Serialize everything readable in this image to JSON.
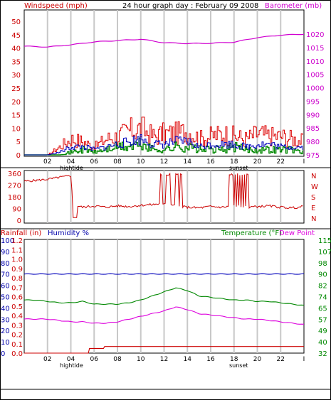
{
  "chart_data": [
    {
      "type": "line",
      "title": "24 hour graph day : February 09 2008",
      "left_axis_label": "Windspeed (mph)",
      "right_axis_label": "Barometer (mb)",
      "y_left_ticks": [
        "0",
        "5",
        "10",
        "15",
        "20",
        "25",
        "30",
        "35",
        "40",
        "45",
        "50"
      ],
      "y_right_ticks": [
        "975",
        "980",
        "985",
        "990",
        "995",
        "1000",
        "1005",
        "1010",
        "1015",
        "1020"
      ],
      "x_tick_labels": [
        "02",
        "04",
        "06",
        "08",
        "10",
        "12",
        "14",
        "16",
        "18",
        "20",
        "22"
      ],
      "x_end_label": "I",
      "annotations": [
        "hightide",
        "sunset"
      ],
      "series": [
        {
          "color": "#d000d0",
          "axis": "right",
          "x": [
            0,
            2,
            4,
            6,
            8,
            10,
            12,
            14,
            16,
            18,
            20,
            22,
            24
          ],
          "values": [
            1015.5,
            1015.2,
            1016.0,
            1017.1,
            1017.6,
            1018.1,
            1016.8,
            1016.5,
            1016.6,
            1017.0,
            1018.7,
            1019.6,
            1020.0
          ]
        },
        {
          "color": "#dd0000",
          "axis": "left",
          "x": [
            0,
            1,
            2,
            3,
            4,
            5,
            6,
            7,
            8,
            9,
            10,
            11,
            12,
            13,
            14,
            15,
            16,
            17,
            18,
            19,
            20,
            21,
            22,
            23,
            24
          ],
          "values": [
            0,
            0,
            0,
            3,
            6,
            5,
            3,
            6,
            7,
            9,
            10,
            7,
            8,
            8,
            9,
            6,
            7,
            8,
            7,
            6,
            8,
            7,
            7,
            6,
            5
          ]
        },
        {
          "color": "#0000bb",
          "axis": "left",
          "x": [
            0,
            1,
            2,
            3,
            4,
            5,
            6,
            7,
            8,
            9,
            10,
            11,
            12,
            13,
            14,
            15,
            16,
            17,
            18,
            19,
            20,
            21,
            22,
            23,
            24
          ],
          "values": [
            0,
            0,
            0,
            1,
            3,
            3,
            2,
            3,
            4,
            5,
            6,
            4,
            4,
            5,
            5,
            3,
            4,
            4,
            4,
            3,
            4,
            4,
            3,
            3,
            3
          ]
        },
        {
          "color": "#008800",
          "axis": "left",
          "x": [
            0,
            1,
            2,
            3,
            4,
            5,
            6,
            7,
            8,
            9,
            10,
            11,
            12,
            13,
            14,
            15,
            16,
            17,
            18,
            19,
            20,
            21,
            22,
            23,
            24
          ],
          "values": [
            0,
            0,
            0,
            0,
            1,
            2,
            1,
            2,
            3,
            3,
            4,
            2,
            2,
            3,
            3,
            2,
            2,
            2,
            3,
            2,
            2,
            2,
            2,
            2,
            1
          ]
        }
      ]
    },
    {
      "type": "line",
      "left_ticks": [
        "360",
        "270",
        "180",
        "90",
        "0"
      ],
      "right_labels": [
        "N",
        "W",
        "S",
        "E",
        "N"
      ],
      "series": [
        {
          "color": "#cc0000",
          "x": [
            0,
            0.2,
            1.5,
            2.5,
            3.0,
            4.0,
            4.3,
            4.6,
            5,
            6,
            7,
            8,
            9,
            10,
            11,
            12,
            13,
            14,
            15,
            16,
            17,
            18,
            19,
            20,
            21,
            22,
            23,
            24
          ],
          "values": [
            300,
            300,
            310,
            320,
            330,
            340,
            20,
            110,
            100,
            110,
            100,
            110,
            105,
            115,
            120,
            130,
            110,
            100,
            95,
            105,
            100,
            110,
            100,
            105,
            110,
            100,
            95,
            105
          ]
        }
      ]
    },
    {
      "type": "line",
      "left_axis_label": "Rainfall (in)",
      "left_axis_label2": "Humidity %",
      "right_axis_label": "Temperature (°F)",
      "right_axis_label2": "Dew Point",
      "rain_ticks": [
        "0.0",
        "0.1",
        "0.2",
        "0.3",
        "0.4",
        "0.5",
        "0.6",
        "0.7",
        "0.8",
        "0.9",
        "1.0",
        "1.1",
        "1.2"
      ],
      "humidity_ticks": [
        "0",
        "10",
        "20",
        "30",
        "40",
        "50",
        "60",
        "70",
        "80",
        "90",
        "100"
      ],
      "temp_ticks": [
        "32",
        "40",
        "49",
        "57",
        "65",
        "74",
        "82",
        "90",
        "98",
        "107",
        "115"
      ],
      "x_tick_labels": [
        "02",
        "04",
        "06",
        "08",
        "10",
        "12",
        "14",
        "16",
        "18",
        "20",
        "22"
      ],
      "x_end_label": "I",
      "annotations": [
        "hightide",
        "sunset"
      ],
      "series": [
        {
          "color": "#008800",
          "axis": "right",
          "x": [
            0,
            1,
            2,
            3,
            4,
            5,
            6,
            7,
            8,
            9,
            10,
            11,
            12,
            13,
            14,
            15,
            16,
            17,
            18,
            19,
            20,
            21,
            22,
            23,
            24
          ],
          "values": [
            71,
            71,
            70,
            69,
            69,
            70,
            68,
            68,
            68,
            69,
            71,
            74,
            77,
            80,
            78,
            74,
            73,
            72,
            71,
            71,
            70,
            70,
            69,
            68,
            67
          ]
        },
        {
          "color": "#dd00dd",
          "axis": "right",
          "x": [
            0,
            1,
            2,
            3,
            4,
            5,
            6,
            7,
            8,
            9,
            10,
            11,
            12,
            13,
            14,
            15,
            16,
            17,
            18,
            19,
            20,
            21,
            22,
            23,
            24
          ],
          "values": [
            57,
            57,
            57,
            56,
            55,
            55,
            54,
            54,
            55,
            57,
            59,
            61,
            63,
            66,
            64,
            61,
            60,
            59,
            58,
            57,
            57,
            56,
            55,
            54,
            53
          ]
        },
        {
          "color": "#0000bb",
          "axis": "humidity",
          "x": [
            0,
            24
          ],
          "values": [
            70,
            70
          ]
        },
        {
          "color": "#cc0000",
          "axis": "rain",
          "x": [
            0,
            5.5,
            5.6,
            6.8,
            6.9,
            24
          ],
          "values": [
            0.0,
            0.0,
            0.05,
            0.05,
            0.07,
            0.07
          ]
        }
      ]
    }
  ]
}
